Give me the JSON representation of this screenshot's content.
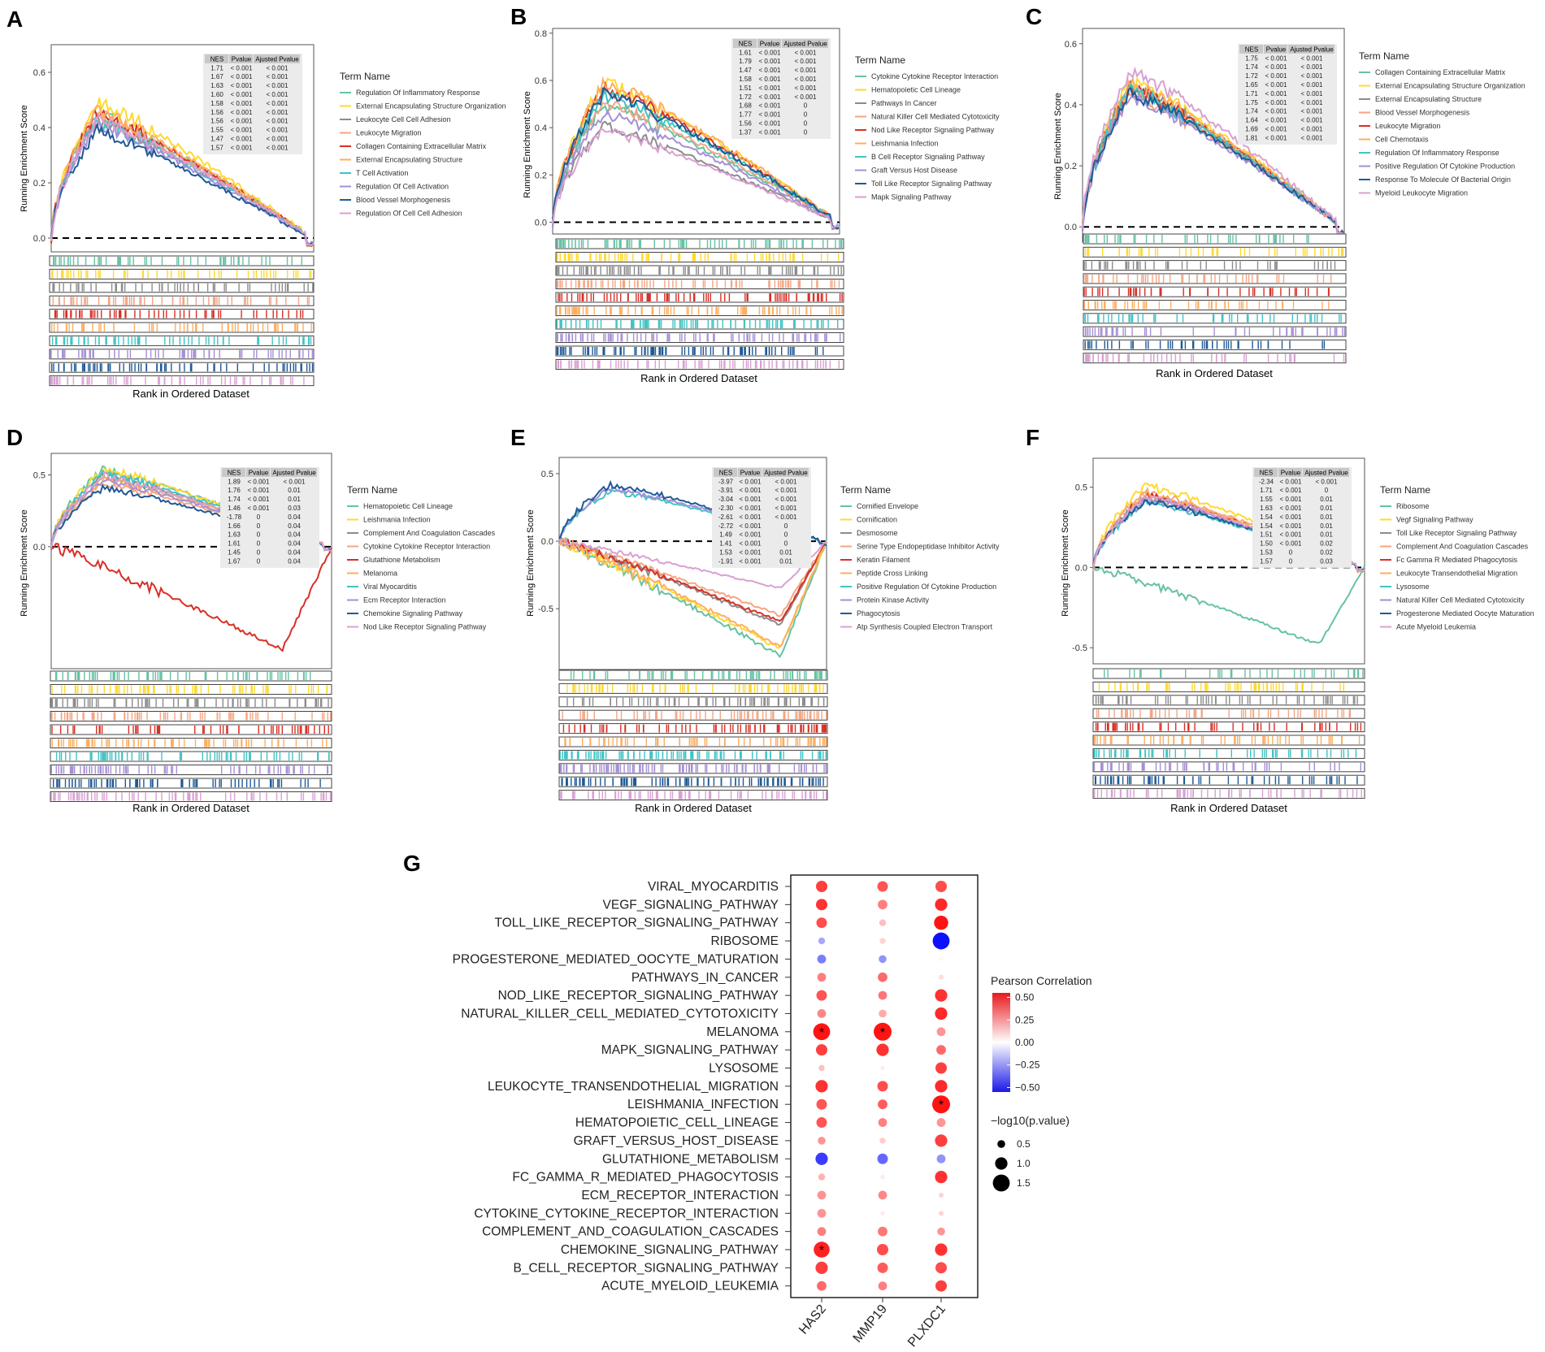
{
  "panels_common": {
    "ylabel": "Running Enrichment Score",
    "xlabel": "Rank in Ordered Dataset",
    "legend_title": "Term Name",
    "table_headers": [
      "NES",
      "Pvalue",
      "Ajusted Pvalue"
    ],
    "palette": [
      "#66c2a5",
      "#ffd92f",
      "#8c8c8c",
      "#f4a582",
      "#d73027",
      "#fdae61",
      "#40c4c4",
      "#a58fd6",
      "#1f5a96",
      "#d9a0d2"
    ]
  },
  "chart_data": [
    {
      "type": "line",
      "panel": "A",
      "ylim": [
        -0.05,
        0.7
      ],
      "yticks": [
        "0.0",
        "0.2",
        "0.4",
        "0.6"
      ],
      "ytick_values": [
        0.0,
        0.2,
        0.4,
        0.6
      ],
      "title": "",
      "xlabel": "Rank in Ordered Dataset",
      "ylabel": "Running Enrichment Score",
      "series": [
        {
          "name": "Regulation Of Inflammatory Response",
          "nes": "1.71",
          "pvalue": "< 0.001",
          "padj": "< 0.001",
          "peak": 0.46
        },
        {
          "name": "External Encapsulating Structure Organization",
          "nes": "1.67",
          "pvalue": "< 0.001",
          "padj": "< 0.001",
          "peak": 0.5
        },
        {
          "name": "Leukocyte Cell Cell Adhesion",
          "nes": "1.63",
          "pvalue": "< 0.001",
          "padj": "< 0.001",
          "peak": 0.44
        },
        {
          "name": "Leukocyte Migration",
          "nes": "1.60",
          "pvalue": "< 0.001",
          "padj": "< 0.001",
          "peak": 0.45
        },
        {
          "name": "Collagen Containing Extracellular Matrix",
          "nes": "1.58",
          "pvalue": "< 0.001",
          "padj": "< 0.001",
          "peak": 0.46
        },
        {
          "name": "External Encapsulating Structure",
          "nes": "1.56",
          "pvalue": "< 0.001",
          "padj": "< 0.001",
          "peak": 0.47
        },
        {
          "name": "T Cell Activation",
          "nes": "1.56",
          "pvalue": "< 0.001",
          "padj": "< 0.001",
          "peak": 0.43
        },
        {
          "name": "Regulation Of Cell Activation",
          "nes": "1.55",
          "pvalue": "< 0.001",
          "padj": "< 0.001",
          "peak": 0.42
        },
        {
          "name": "Blood Vessel Morphogenesis",
          "nes": "1.47",
          "pvalue": "< 0.001",
          "padj": "< 0.001",
          "peak": 0.4
        },
        {
          "name": "Regulation Of Cell Cell Adhesion",
          "nes": "1.57",
          "pvalue": "< 0.001",
          "padj": "< 0.001",
          "peak": 0.44
        }
      ]
    },
    {
      "type": "line",
      "panel": "B",
      "ylim": [
        -0.05,
        0.82
      ],
      "yticks": [
        "0.0",
        "0.2",
        "0.4",
        "0.6",
        "0.8"
      ],
      "ytick_values": [
        0.0,
        0.2,
        0.4,
        0.6,
        0.8
      ],
      "title": "",
      "xlabel": "Rank in Ordered Dataset",
      "ylabel": "Running Enrichment Score",
      "series": [
        {
          "name": "Cytokine Cytokine Receptor Interaction",
          "nes": "1.61",
          "pvalue": "< 0.001",
          "padj": "< 0.001",
          "peak": 0.5
        },
        {
          "name": "Hematopoietic Cell Lineage",
          "nes": "1.79",
          "pvalue": "< 0.001",
          "padj": "< 0.001",
          "peak": 0.6
        },
        {
          "name": "Pathways In Cancer",
          "nes": "1.47",
          "pvalue": "< 0.001",
          "padj": "< 0.001",
          "peak": 0.42
        },
        {
          "name": "Natural Killer Cell Mediated Cytotoxicity",
          "nes": "1.58",
          "pvalue": "< 0.001",
          "padj": "< 0.001",
          "peak": 0.52
        },
        {
          "name": "Nod Like Receptor Signaling Pathway",
          "nes": "1.51",
          "pvalue": "< 0.001",
          "padj": "< 0.001",
          "peak": 0.58
        },
        {
          "name": "Leishmania Infection",
          "nes": "1.72",
          "pvalue": "< 0.001",
          "padj": "< 0.001",
          "peak": 0.6
        },
        {
          "name": "B Cell Receptor Signaling Pathway",
          "nes": "1.68",
          "pvalue": "< 0.001",
          "padj": "0",
          "peak": 0.55
        },
        {
          "name": "Graft Versus Host Disease",
          "nes": "1.77",
          "pvalue": "< 0.001",
          "padj": "0",
          "peak": 0.47
        },
        {
          "name": "Toll Like Receptor Signaling Pathway",
          "nes": "1.56",
          "pvalue": "< 0.001",
          "padj": "0",
          "peak": 0.56
        },
        {
          "name": "Mapk Signaling Pathway",
          "nes": "1.37",
          "pvalue": "< 0.001",
          "padj": "0",
          "peak": 0.4
        }
      ]
    },
    {
      "type": "line",
      "panel": "C",
      "ylim": [
        -0.05,
        0.65
      ],
      "yticks": [
        "0.0",
        "0.2",
        "0.4",
        "0.6"
      ],
      "ytick_values": [
        0.0,
        0.2,
        0.4,
        0.6
      ],
      "title": "",
      "xlabel": "Rank in Ordered Dataset",
      "ylabel": "Running Enrichment Score",
      "series": [
        {
          "name": "Collagen Containing Extracellular Matrix",
          "nes": "1.75",
          "pvalue": "< 0.001",
          "padj": "< 0.001",
          "peak": 0.46
        },
        {
          "name": "External Encapsulating Structure Organization",
          "nes": "1.74",
          "pvalue": "< 0.001",
          "padj": "< 0.001",
          "peak": 0.49
        },
        {
          "name": "External Encapsulating Structure",
          "nes": "1.72",
          "pvalue": "< 0.001",
          "padj": "< 0.001",
          "peak": 0.47
        },
        {
          "name": "Blood Vessel Morphogenesis",
          "nes": "1.65",
          "pvalue": "< 0.001",
          "padj": "< 0.001",
          "peak": 0.45
        },
        {
          "name": "Leukocyte Migration",
          "nes": "1.71",
          "pvalue": "< 0.001",
          "padj": "< 0.001",
          "peak": 0.47
        },
        {
          "name": "Cell Chemotaxis",
          "nes": "1.75",
          "pvalue": "< 0.001",
          "padj": "< 0.001",
          "peak": 0.48
        },
        {
          "name": "Regulation Of Inflammatory Response",
          "nes": "1.74",
          "pvalue": "< 0.001",
          "padj": "< 0.001",
          "peak": 0.46
        },
        {
          "name": "Positive Regulation Of Cytokine Production",
          "nes": "1.64",
          "pvalue": "< 0.001",
          "padj": "< 0.001",
          "peak": 0.44
        },
        {
          "name": "Response To Molecule Of Bacterial Origin",
          "nes": "1.69",
          "pvalue": "< 0.001",
          "padj": "< 0.001",
          "peak": 0.45
        },
        {
          "name": "Myeloid Leukocyte Migration",
          "nes": "1.81",
          "pvalue": "< 0.001",
          "padj": "< 0.001",
          "peak": 0.52
        }
      ]
    },
    {
      "type": "line",
      "panel": "D",
      "ylim": [
        -0.85,
        0.65
      ],
      "yticks": [
        "0.0",
        "0.5"
      ],
      "ytick_values": [
        0.0,
        0.5
      ],
      "title": "",
      "xlabel": "Rank in Ordered Dataset",
      "ylabel": "Running Enrichment Score",
      "series": [
        {
          "name": "Hematopoietic Cell Lineage",
          "nes": "1.89",
          "pvalue": "< 0.001",
          "padj": "< 0.001",
          "peak": 0.55
        },
        {
          "name": "Leishmania Infection",
          "nes": "1.76",
          "pvalue": "< 0.001",
          "padj": "0.01",
          "peak": 0.55
        },
        {
          "name": "Complement And Coagulation Cascades",
          "nes": "1.74",
          "pvalue": "< 0.001",
          "padj": "0.01",
          "peak": 0.5
        },
        {
          "name": "Cytokine Cytokine Receptor Interaction",
          "nes": "1.46",
          "pvalue": "< 0.001",
          "padj": "0.03",
          "peak": 0.45
        },
        {
          "name": "Glutathione Metabolism",
          "nes": "-1.78",
          "pvalue": "0",
          "padj": "0.04",
          "peak": -0.72
        },
        {
          "name": "Melanoma",
          "nes": "1.66",
          "pvalue": "0",
          "padj": "0.04",
          "peak": 0.48
        },
        {
          "name": "Viral Myocarditis",
          "nes": "1.63",
          "pvalue": "0",
          "padj": "0.04",
          "peak": 0.52
        },
        {
          "name": "Ecm Receptor Interaction",
          "nes": "1.61",
          "pvalue": "0",
          "padj": "0.04",
          "peak": 0.47
        },
        {
          "name": "Chemokine Signaling Pathway",
          "nes": "1.45",
          "pvalue": "0",
          "padj": "0.04",
          "peak": 0.42
        },
        {
          "name": "Nod Like Receptor Signaling Pathway",
          "nes": "1.67",
          "pvalue": "0",
          "padj": "0.04",
          "peak": 0.5
        }
      ]
    },
    {
      "type": "line",
      "panel": "E",
      "ylim": [
        -0.95,
        0.62
      ],
      "yticks": [
        "0.5",
        "0.0",
        "-0.5"
      ],
      "ytick_values": [
        0.5,
        0.0,
        -0.5
      ],
      "title": "",
      "xlabel": "Rank in Ordered Dataset",
      "ylabel": "Running Enrichment Score",
      "series": [
        {
          "name": "Cornified Envelope",
          "nes": "-3.97",
          "pvalue": "< 0.001",
          "padj": "< 0.001",
          "peak": -0.85
        },
        {
          "name": "Cornification",
          "nes": "-3.91",
          "pvalue": "< 0.001",
          "padj": "< 0.001",
          "peak": -0.8
        },
        {
          "name": "Desmosome",
          "nes": "-3.04",
          "pvalue": "< 0.001",
          "padj": "< 0.001",
          "peak": -0.62
        },
        {
          "name": "Serine Type Endopeptidase Inhibitor Activity",
          "nes": "-2.30",
          "pvalue": "< 0.001",
          "padj": "< 0.001",
          "peak": -0.55
        },
        {
          "name": "Keratin Filament",
          "nes": "-2.61",
          "pvalue": "< 0.001",
          "padj": "< 0.001",
          "peak": -0.6
        },
        {
          "name": "Peptide Cross Linking",
          "nes": "-2.72",
          "pvalue": "< 0.001",
          "padj": "0",
          "peak": -0.78
        },
        {
          "name": "Positive Regulation Of Cytokine Production",
          "nes": "1.49",
          "pvalue": "< 0.001",
          "padj": "0",
          "peak": 0.38
        },
        {
          "name": "Protein Kinase Activity",
          "nes": "1.41",
          "pvalue": "< 0.001",
          "padj": "0",
          "peak": 0.4
        },
        {
          "name": "Phagocytosis",
          "nes": "1.53",
          "pvalue": "< 0.001",
          "padj": "0.01",
          "peak": 0.43
        },
        {
          "name": "Atp Synthesis Coupled Electron Transport",
          "nes": "-1.91",
          "pvalue": "< 0.001",
          "padj": "0.01",
          "peak": -0.35
        }
      ]
    },
    {
      "type": "line",
      "panel": "F",
      "ylim": [
        -0.6,
        0.68
      ],
      "yticks": [
        "0.5",
        "0.0",
        "-0.5"
      ],
      "ytick_values": [
        0.5,
        0.0,
        -0.5
      ],
      "title": "",
      "xlabel": "Rank in Ordered Dataset",
      "ylabel": "Running Enrichment Score",
      "series": [
        {
          "name": "Ribosome",
          "nes": "-2.34",
          "pvalue": "< 0.001",
          "padj": "< 0.001",
          "peak": -0.48
        },
        {
          "name": "Vegf Signaling Pathway",
          "nes": "1.71",
          "pvalue": "< 0.001",
          "padj": "0",
          "peak": 0.52
        },
        {
          "name": "Toll Like Receptor Signaling Pathway",
          "nes": "1.55",
          "pvalue": "< 0.001",
          "padj": "0.01",
          "peak": 0.45
        },
        {
          "name": "Complement And Coagulation Cascades",
          "nes": "1.63",
          "pvalue": "< 0.001",
          "padj": "0.01",
          "peak": 0.48
        },
        {
          "name": "Fc Gamma R Mediated Phagocytosis",
          "nes": "1.54",
          "pvalue": "< 0.001",
          "padj": "0.01",
          "peak": 0.46
        },
        {
          "name": "Leukocyte Transendothelial Migration",
          "nes": "1.54",
          "pvalue": "< 0.001",
          "padj": "0.01",
          "peak": 0.47
        },
        {
          "name": "Lysosome",
          "nes": "1.51",
          "pvalue": "< 0.001",
          "padj": "0.01",
          "peak": 0.42
        },
        {
          "name": "Natural Killer Cell Mediated Cytotoxicity",
          "nes": "1.50",
          "pvalue": "< 0.001",
          "padj": "0.02",
          "peak": 0.44
        },
        {
          "name": "Progesterone Mediated Oocyte Maturation",
          "nes": "1.53",
          "pvalue": "0",
          "padj": "0.02",
          "peak": 0.43
        },
        {
          "name": "Acute Myeloid Leukemia",
          "nes": "1.57",
          "pvalue": "0",
          "padj": "0.03",
          "peak": 0.45
        }
      ]
    },
    {
      "type": "scatter",
      "panel": "G",
      "subtype": "dot-heatmap",
      "genes": [
        "HAS2",
        "MMP19",
        "PLXDC1"
      ],
      "pathways": [
        "VIRAL_MYOCARDITIS",
        "VEGF_SIGNALING_PATHWAY",
        "TOLL_LIKE_RECEPTOR_SIGNALING_PATHWAY",
        "RIBOSOME",
        "PROGESTERONE_MEDIATED_OOCYTE_MATURATION",
        "PATHWAYS_IN_CANCER",
        "NOD_LIKE_RECEPTOR_SIGNALING_PATHWAY",
        "NATURAL_KILLER_CELL_MEDIATED_CYTOTOXICITY",
        "MELANOMA",
        "MAPK_SIGNALING_PATHWAY",
        "LYSOSOME",
        "LEUKOCYTE_TRANSENDOTHELIAL_MIGRATION",
        "LEISHMANIA_INFECTION",
        "HEMATOPOIETIC_CELL_LINEAGE",
        "GRAFT_VERSUS_HOST_DISEASE",
        "GLUTATHIONE_METABOLISM",
        "FC_GAMMA_R_MEDIATED_PHAGOCYTOSIS",
        "ECM_RECEPTOR_INTERACTION",
        "CYTOKINE_CYTOKINE_RECEPTOR_INTERACTION",
        "COMPLEMENT_AND_COAGULATION_CASCADES",
        "CHEMOKINE_SIGNALING_PATHWAY",
        "B_CELL_RECEPTOR_SIGNALING_PATHWAY",
        "ACUTE_MYELOID_LEUKEMIA"
      ],
      "correlation": [
        [
          0.45,
          0.4,
          0.42
        ],
        [
          0.48,
          0.3,
          0.5
        ],
        [
          0.42,
          0.15,
          0.58
        ],
        [
          -0.2,
          0.1,
          -0.55
        ],
        [
          -0.3,
          -0.25,
          0.02
        ],
        [
          0.3,
          0.35,
          0.08
        ],
        [
          0.4,
          0.32,
          0.48
        ],
        [
          0.28,
          0.2,
          0.5
        ],
        [
          0.55,
          0.6,
          0.25
        ],
        [
          0.45,
          0.48,
          0.35
        ],
        [
          0.15,
          0.05,
          0.45
        ],
        [
          0.48,
          0.42,
          0.5
        ],
        [
          0.4,
          0.38,
          0.62
        ],
        [
          0.4,
          0.3,
          0.25
        ],
        [
          0.25,
          0.12,
          0.45
        ],
        [
          -0.45,
          -0.35,
          -0.25
        ],
        [
          0.18,
          0.05,
          0.48
        ],
        [
          0.25,
          0.28,
          0.1
        ],
        [
          0.25,
          0.05,
          0.1
        ],
        [
          0.3,
          0.32,
          0.25
        ],
        [
          0.52,
          0.42,
          0.48
        ],
        [
          0.45,
          0.38,
          0.42
        ],
        [
          0.35,
          0.3,
          0.45
        ]
      ],
      "neg_log10_p": [
        [
          0.9,
          0.8,
          0.9
        ],
        [
          0.9,
          0.7,
          1.0
        ],
        [
          0.8,
          0.4,
          1.2
        ],
        [
          0.4,
          0.3,
          1.5
        ],
        [
          0.6,
          0.5,
          0.1
        ],
        [
          0.6,
          0.7,
          0.2
        ],
        [
          0.8,
          0.6,
          1.0
        ],
        [
          0.6,
          0.5,
          1.0
        ],
        [
          1.5,
          1.6,
          0.6
        ],
        [
          0.9,
          1.0,
          0.7
        ],
        [
          0.3,
          0.1,
          0.9
        ],
        [
          1.0,
          0.8,
          1.0
        ],
        [
          0.8,
          0.7,
          1.6
        ],
        [
          0.8,
          0.6,
          0.6
        ],
        [
          0.5,
          0.3,
          1.0
        ],
        [
          1.0,
          0.8,
          0.6
        ],
        [
          0.4,
          0.1,
          1.0
        ],
        [
          0.6,
          0.6,
          0.2
        ],
        [
          0.6,
          0.1,
          0.2
        ],
        [
          0.6,
          0.7,
          0.5
        ],
        [
          1.4,
          0.9,
          1.0
        ],
        [
          1.0,
          0.8,
          0.9
        ],
        [
          0.7,
          0.6,
          0.9
        ]
      ],
      "significant": [
        [
          8,
          0
        ],
        [
          8,
          1
        ],
        [
          12,
          2
        ],
        [
          20,
          0
        ]
      ],
      "legend_color_title": "Pearson Correlation",
      "color_ticks": [
        "0.50",
        "0.25",
        "0.00",
        "−0.25",
        "−0.50"
      ],
      "color_tick_values": [
        0.5,
        0.25,
        0.0,
        -0.25,
        -0.5
      ],
      "legend_size_title": "−log10(p.value)",
      "size_ticks": [
        "0.5",
        "1.0",
        "1.5"
      ],
      "size_tick_values": [
        0.5,
        1.0,
        1.5
      ],
      "star_glyph": "*"
    }
  ],
  "panel_letters": [
    "A",
    "B",
    "C",
    "D",
    "E",
    "F",
    "G"
  ]
}
